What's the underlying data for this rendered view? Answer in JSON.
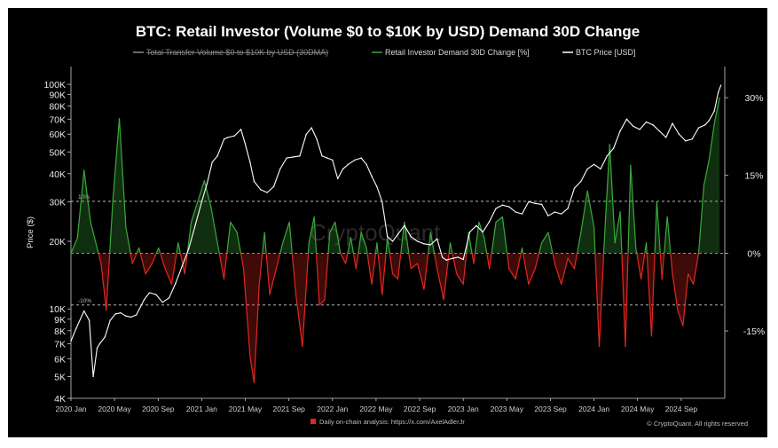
{
  "chart_data": {
    "type": "line",
    "title": "BTC: Retail Investor (Volume $0 to $10K by USD) Demand 30D Change",
    "legend": [
      {
        "name": "Total Transfer Volume $0 to $10K by USD (30DMA)",
        "color": "#8a8a8a",
        "strikethrough": true
      },
      {
        "name": "Retail Investor Demand 30D Change [%]",
        "color": "#3aa83a"
      },
      {
        "name": "BTC Price [USD]",
        "color": "#ffffff"
      }
    ],
    "ylabel_left": "Price ($)",
    "y_left_scale": "log",
    "y_left_range": [
      4000,
      120000
    ],
    "y_left_ticks": [
      {
        "value": 100000,
        "label": "100K"
      },
      {
        "value": 90000,
        "label": "90K"
      },
      {
        "value": 80000,
        "label": "80K"
      },
      {
        "value": 70000,
        "label": "70K"
      },
      {
        "value": 60000,
        "label": "60K"
      },
      {
        "value": 50000,
        "label": "50K"
      },
      {
        "value": 40000,
        "label": "40K"
      },
      {
        "value": 30000,
        "label": "30K"
      },
      {
        "value": 20000,
        "label": "20K"
      },
      {
        "value": 10000,
        "label": "10K"
      },
      {
        "value": 9000,
        "label": "9K"
      },
      {
        "value": 8000,
        "label": "8K"
      },
      {
        "value": 7000,
        "label": "7K"
      },
      {
        "value": 6000,
        "label": "6K"
      },
      {
        "value": 5000,
        "label": "5K"
      },
      {
        "value": 4000,
        "label": "4K"
      }
    ],
    "y_right_range": [
      -28,
      36
    ],
    "y_right_ticks": [
      {
        "value": 30,
        "label": "30%"
      },
      {
        "value": 15,
        "label": "15%"
      },
      {
        "value": 0,
        "label": "0%"
      },
      {
        "value": -15,
        "label": "-15%"
      }
    ],
    "reference_lines": [
      {
        "value": 10,
        "label": "10%"
      },
      {
        "value": 0,
        "label": ""
      },
      {
        "value": -10,
        "label": "-10%"
      }
    ],
    "x_range": [
      2020.0,
      2025.0
    ],
    "x_ticks": [
      {
        "value": 2020.0,
        "label": "2020 Jan"
      },
      {
        "value": 2020.333,
        "label": "2020 May"
      },
      {
        "value": 2020.667,
        "label": "2020 Sep"
      },
      {
        "value": 2021.0,
        "label": "2021 Jan"
      },
      {
        "value": 2021.333,
        "label": "2021 May"
      },
      {
        "value": 2021.667,
        "label": "2021 Sep"
      },
      {
        "value": 2022.0,
        "label": "2022 Jan"
      },
      {
        "value": 2022.333,
        "label": "2022 May"
      },
      {
        "value": 2022.667,
        "label": "2022 Sep"
      },
      {
        "value": 2023.0,
        "label": "2023 Jan"
      },
      {
        "value": 2023.333,
        "label": "2023 May"
      },
      {
        "value": 2023.667,
        "label": "2023 Sep"
      },
      {
        "value": 2024.0,
        "label": "2024 Jan"
      },
      {
        "value": 2024.333,
        "label": "2024 May"
      },
      {
        "value": 2024.667,
        "label": "2024 Sep"
      }
    ],
    "series": [
      {
        "name": "BTC Price [USD]",
        "axis": "left",
        "color": "#ffffff",
        "x": [
          2020.0,
          2020.04,
          2020.1,
          2020.14,
          2020.17,
          2020.2,
          2020.22,
          2020.26,
          2020.3,
          2020.34,
          2020.38,
          2020.42,
          2020.46,
          2020.5,
          2020.56,
          2020.6,
          2020.65,
          2020.7,
          2020.75,
          2020.8,
          2020.85,
          2020.9,
          2020.95,
          2021.0,
          2021.04,
          2021.08,
          2021.12,
          2021.17,
          2021.2,
          2021.25,
          2021.3,
          2021.33,
          2021.37,
          2021.4,
          2021.45,
          2021.5,
          2021.55,
          2021.6,
          2021.65,
          2021.7,
          2021.75,
          2021.8,
          2021.84,
          2021.88,
          2021.92,
          2021.96,
          2022.0,
          2022.04,
          2022.08,
          2022.12,
          2022.17,
          2022.22,
          2022.26,
          2022.3,
          2022.34,
          2022.38,
          2022.42,
          2022.46,
          2022.5,
          2022.55,
          2022.6,
          2022.65,
          2022.7,
          2022.75,
          2022.8,
          2022.84,
          2022.87,
          2022.92,
          2022.96,
          2023.0,
          2023.05,
          2023.1,
          2023.15,
          2023.2,
          2023.25,
          2023.3,
          2023.35,
          2023.4,
          2023.45,
          2023.5,
          2023.55,
          2023.6,
          2023.65,
          2023.7,
          2023.75,
          2023.8,
          2023.85,
          2023.9,
          2023.95,
          2024.0,
          2024.05,
          2024.1,
          2024.15,
          2024.2,
          2024.25,
          2024.3,
          2024.35,
          2024.4,
          2024.45,
          2024.5,
          2024.55,
          2024.6,
          2024.65,
          2024.7,
          2024.75,
          2024.8,
          2024.85,
          2024.88,
          2024.92,
          2024.95,
          2024.97
        ],
        "values": [
          7200,
          8200,
          9800,
          8900,
          5000,
          6700,
          7000,
          7500,
          8900,
          9500,
          9600,
          9300,
          9200,
          9400,
          11000,
          11800,
          11600,
          10700,
          11200,
          13000,
          15500,
          18500,
          23500,
          30000,
          36000,
          45000,
          48000,
          57000,
          58000,
          59000,
          63000,
          55000,
          45000,
          37000,
          34000,
          33000,
          35000,
          42000,
          47000,
          47500,
          48000,
          60000,
          64000,
          57000,
          48000,
          47000,
          46000,
          38000,
          42000,
          44000,
          46000,
          47000,
          44000,
          39000,
          35000,
          30000,
          21000,
          20000,
          21500,
          23500,
          21000,
          20000,
          19500,
          19300,
          20500,
          17000,
          16500,
          16800,
          17000,
          16600,
          22000,
          23500,
          22000,
          24500,
          28000,
          29000,
          28500,
          27000,
          26500,
          30000,
          29500,
          29200,
          26000,
          27000,
          26500,
          28000,
          34500,
          37000,
          42000,
          44000,
          42000,
          48000,
          52000,
          62000,
          70000,
          65000,
          63000,
          68000,
          66000,
          62000,
          58000,
          67000,
          60000,
          56000,
          57000,
          64000,
          66000,
          69000,
          76000,
          92000,
          99000
        ]
      },
      {
        "name": "Retail Investor Demand 30D Change [%]",
        "axis": "right",
        "color_positive": "#3aa83a",
        "color_negative": "#e3261f",
        "x": [
          2020.0,
          2020.05,
          2020.1,
          2020.15,
          2020.2,
          2020.23,
          2020.27,
          2020.32,
          2020.37,
          2020.42,
          2020.47,
          2020.52,
          2020.57,
          2020.62,
          2020.67,
          2020.72,
          2020.77,
          2020.82,
          2020.87,
          2020.92,
          2020.97,
          2021.02,
          2021.07,
          2021.12,
          2021.17,
          2021.22,
          2021.27,
          2021.32,
          2021.37,
          2021.4,
          2021.44,
          2021.48,
          2021.52,
          2021.57,
          2021.62,
          2021.67,
          2021.72,
          2021.77,
          2021.82,
          2021.86,
          2021.9,
          2021.94,
          2021.98,
          2022.02,
          2022.06,
          2022.1,
          2022.14,
          2022.18,
          2022.22,
          2022.26,
          2022.3,
          2022.34,
          2022.38,
          2022.42,
          2022.46,
          2022.5,
          2022.55,
          2022.6,
          2022.65,
          2022.7,
          2022.75,
          2022.8,
          2022.85,
          2022.9,
          2022.95,
          2023.0,
          2023.04,
          2023.08,
          2023.12,
          2023.16,
          2023.2,
          2023.25,
          2023.3,
          2023.35,
          2023.4,
          2023.45,
          2023.5,
          2023.55,
          2023.6,
          2023.65,
          2023.7,
          2023.75,
          2023.8,
          2023.85,
          2023.9,
          2023.95,
          2024.0,
          2024.04,
          2024.08,
          2024.12,
          2024.16,
          2024.2,
          2024.24,
          2024.28,
          2024.32,
          2024.36,
          2024.4,
          2024.44,
          2024.48,
          2024.52,
          2024.56,
          2024.6,
          2024.64,
          2024.68,
          2024.72,
          2024.76,
          2024.8,
          2024.84,
          2024.88,
          2024.92,
          2024.96
        ],
        "values": [
          0,
          3,
          16,
          6,
          1,
          -2,
          -11,
          10,
          26,
          5,
          -2,
          1,
          -4,
          -2,
          1,
          -3,
          -6,
          2,
          -4,
          6,
          10,
          14,
          9,
          2,
          -5,
          6,
          4,
          -3,
          -20,
          -25,
          -6,
          4,
          -8,
          -3,
          2,
          6,
          -8,
          -18,
          2,
          7,
          -10,
          -9,
          4,
          6,
          0,
          -2,
          3,
          -3,
          4,
          1,
          -6,
          2,
          -8,
          3,
          -4,
          -5,
          6,
          -3,
          -2,
          -7,
          4,
          -3,
          -9,
          2,
          -4,
          -6,
          4,
          -2,
          6,
          3,
          -3,
          6,
          7,
          -3,
          -5,
          1,
          -6,
          -3,
          2,
          4,
          -2,
          -6,
          -1,
          -3,
          4,
          12,
          5,
          -18,
          3,
          21,
          2,
          8,
          -18,
          17,
          1,
          -5,
          2,
          -16,
          10,
          -5,
          7,
          -4,
          -11,
          -14,
          -4,
          -6,
          0,
          13,
          18,
          25,
          30
        ]
      }
    ],
    "annotations": [
      "Daily on-chain analysis: https://x.com/AxelAdlerJr",
      "© CryptoQuant. All rights reserved",
      "CryptoQuant"
    ]
  }
}
